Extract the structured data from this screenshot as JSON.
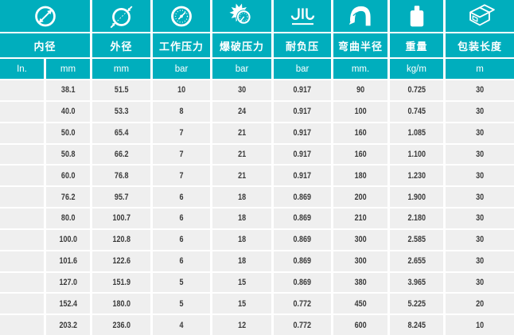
{
  "theme": {
    "header_teal": "#00aebd",
    "row_bg": "#efefef",
    "text_dark": "#3a3a3a",
    "divider_white": "#ffffff"
  },
  "chart_data": {
    "type": "table",
    "title": "",
    "header_groups": [
      {
        "id": "inner-diameter",
        "label": "内径",
        "icon": "inner-diameter-icon",
        "span": 2,
        "units": [
          "In.",
          "mm"
        ]
      },
      {
        "id": "outer-diameter",
        "label": "外径",
        "icon": "outer-diameter-icon",
        "span": 1,
        "units": [
          "mm"
        ]
      },
      {
        "id": "working-pressure",
        "label": "工作压力",
        "icon": "pressure-gauge-icon",
        "span": 1,
        "units": [
          "bar"
        ]
      },
      {
        "id": "burst-pressure",
        "label": "爆破压力",
        "icon": "burst-pressure-icon",
        "span": 1,
        "units": [
          "bar"
        ]
      },
      {
        "id": "vacuum-resistance",
        "label": "耐负压",
        "icon": "vacuum-icon",
        "span": 1,
        "units": [
          "bar"
        ]
      },
      {
        "id": "bend-radius",
        "label": "弯曲半径",
        "icon": "bend-radius-icon",
        "span": 1,
        "units": [
          "mm."
        ]
      },
      {
        "id": "weight",
        "label": "重量",
        "icon": "weight-icon",
        "span": 1,
        "units": [
          "kg/m"
        ]
      },
      {
        "id": "packing-length",
        "label": "包装长度",
        "icon": "package-box-icon",
        "span": 1,
        "units": [
          "m"
        ]
      }
    ],
    "rows": [
      [
        "",
        "38.1",
        "51.5",
        "10",
        "30",
        "0.917",
        "90",
        "0.725",
        "30"
      ],
      [
        "",
        "40.0",
        "53.3",
        "8",
        "24",
        "0.917",
        "100",
        "0.745",
        "30"
      ],
      [
        "",
        "50.0",
        "65.4",
        "7",
        "21",
        "0.917",
        "160",
        "1.085",
        "30"
      ],
      [
        "",
        "50.8",
        "66.2",
        "7",
        "21",
        "0.917",
        "160",
        "1.100",
        "30"
      ],
      [
        "",
        "60.0",
        "76.8",
        "7",
        "21",
        "0.917",
        "180",
        "1.230",
        "30"
      ],
      [
        "",
        "76.2",
        "95.7",
        "6",
        "18",
        "0.869",
        "200",
        "1.900",
        "30"
      ],
      [
        "",
        "80.0",
        "100.7",
        "6",
        "18",
        "0.869",
        "210",
        "2.180",
        "30"
      ],
      [
        "",
        "100.0",
        "120.8",
        "6",
        "18",
        "0.869",
        "300",
        "2.585",
        "30"
      ],
      [
        "",
        "101.6",
        "122.6",
        "6",
        "18",
        "0.869",
        "300",
        "2.655",
        "30"
      ],
      [
        "",
        "127.0",
        "151.9",
        "5",
        "15",
        "0.869",
        "380",
        "3.965",
        "30"
      ],
      [
        "",
        "152.4",
        "180.0",
        "5",
        "15",
        "0.772",
        "450",
        "5.225",
        "20"
      ],
      [
        "",
        "203.2",
        "236.0",
        "4",
        "12",
        "0.772",
        "600",
        "8.245",
        "10"
      ]
    ]
  }
}
